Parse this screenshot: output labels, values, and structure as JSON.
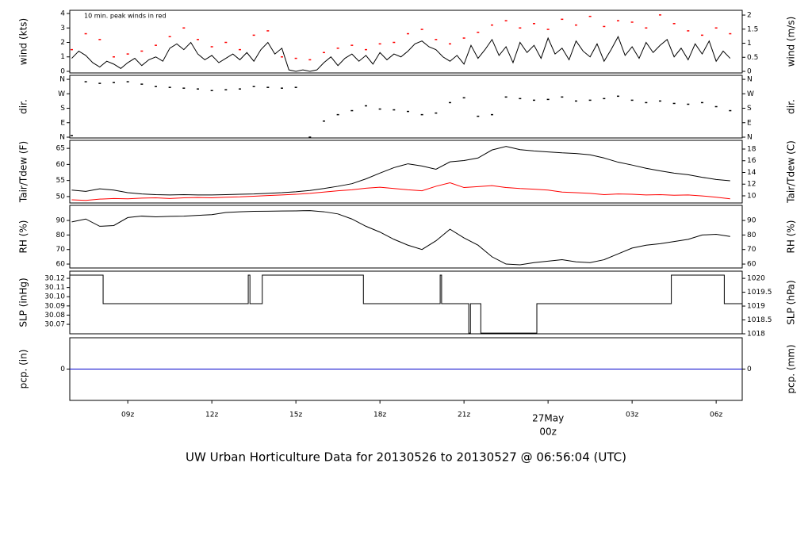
{
  "title": "UW Urban Horticulture Data for 20130526  to  20130527 @ 06:56:04  (UTC)",
  "title_color": "#1a1aff",
  "chart_data": [
    {
      "type": "line",
      "ylabel": "wind (kts)",
      "y2label": "wind (m/s)",
      "annotation": "10 min. peak winds in red",
      "annotation_color": "#ff0000",
      "xlim": [
        6.93,
        30.93
      ],
      "ylim": [
        -0.11,
        4.22
      ],
      "yticks": [
        0,
        1,
        2,
        3,
        4
      ],
      "y2lim": [
        -0.056,
        2.17
      ],
      "y2ticks": [
        0,
        0.5,
        1,
        1.5,
        2
      ],
      "series": [
        {
          "style": "line",
          "color": "#000000",
          "x": [
            7,
            7.25,
            7.5,
            7.75,
            8,
            8.25,
            8.5,
            8.75,
            9,
            9.25,
            9.5,
            9.75,
            10,
            10.25,
            10.5,
            10.75,
            11,
            11.25,
            11.5,
            11.75,
            12,
            12.25,
            12.5,
            12.75,
            13,
            13.25,
            13.5,
            13.75,
            14,
            14.25,
            14.5,
            14.75,
            15,
            15.25,
            15.5,
            15.75,
            16,
            16.25,
            16.5,
            16.75,
            17,
            17.25,
            17.5,
            17.75,
            18,
            18.25,
            18.5,
            18.75,
            19,
            19.25,
            19.5,
            19.75,
            20,
            20.25,
            20.5,
            20.75,
            21,
            21.25,
            21.5,
            21.75,
            22,
            22.25,
            22.5,
            22.75,
            23,
            23.25,
            23.5,
            23.75,
            24,
            24.25,
            24.5,
            24.75,
            25,
            25.25,
            25.5,
            25.75,
            26,
            26.25,
            26.5,
            26.75,
            27,
            27.25,
            27.5,
            27.75,
            28,
            28.25,
            28.5,
            28.75,
            29,
            29.25,
            29.5,
            29.75,
            30,
            30.25,
            30.5
          ],
          "values": [
            0.9,
            1.4,
            1.1,
            0.6,
            0.3,
            0.7,
            0.5,
            0.2,
            0.6,
            0.9,
            0.4,
            0.8,
            1.0,
            0.7,
            1.6,
            1.9,
            1.5,
            2.0,
            1.2,
            0.8,
            1.1,
            0.6,
            0.9,
            1.2,
            0.8,
            1.3,
            0.7,
            1.5,
            2.0,
            1.2,
            1.6,
            0.1,
            0.0,
            0.1,
            0.0,
            0.1,
            0.6,
            1.0,
            0.4,
            0.9,
            1.2,
            0.7,
            1.1,
            0.5,
            1.3,
            0.8,
            1.2,
            1.0,
            1.4,
            1.9,
            2.1,
            1.7,
            1.5,
            1.0,
            0.7,
            1.1,
            0.5,
            1.8,
            0.9,
            1.5,
            2.2,
            1.1,
            1.7,
            0.6,
            2.0,
            1.3,
            1.8,
            0.9,
            2.3,
            1.2,
            1.6,
            0.8,
            2.1,
            1.4,
            1.0,
            1.9,
            0.7,
            1.5,
            2.4,
            1.1,
            1.7,
            0.9,
            2.0,
            1.3,
            1.8,
            2.2,
            1.0,
            1.6,
            0.8,
            1.9,
            1.2,
            2.1,
            0.7,
            1.4,
            0.9
          ]
        },
        {
          "style": "points",
          "color": "#ff0000",
          "x": [
            7,
            7.5,
            8,
            8.5,
            9,
            9.5,
            10,
            10.5,
            11,
            11.5,
            12,
            12.5,
            13,
            13.5,
            14,
            14.5,
            15,
            15.5,
            16,
            16.5,
            17,
            17.5,
            18,
            18.5,
            19,
            19.5,
            20,
            20.5,
            21,
            21.5,
            22,
            22.5,
            23,
            23.5,
            24,
            24.5,
            25,
            25.5,
            26,
            26.5,
            27,
            27.5,
            28,
            28.5,
            29,
            29.5,
            30,
            30.5
          ],
          "values": [
            1.5,
            2.6,
            2.2,
            1.0,
            1.2,
            1.4,
            1.8,
            2.4,
            3.0,
            2.2,
            1.7,
            2.0,
            1.5,
            2.5,
            2.8,
            1.0,
            0.9,
            0.8,
            1.3,
            1.6,
            1.8,
            1.5,
            1.9,
            2.0,
            2.6,
            2.9,
            2.2,
            1.9,
            2.3,
            2.7,
            3.2,
            3.5,
            3.0,
            3.3,
            2.9,
            3.6,
            3.2,
            3.8,
            3.1,
            3.5,
            3.4,
            3.0,
            3.9,
            3.3,
            2.8,
            2.5,
            3.0,
            2.6
          ]
        }
      ]
    },
    {
      "type": "scatter",
      "ylabel": "dir.",
      "y2label": "dir.",
      "xlim": [
        6.93,
        30.93
      ],
      "ylim": [
        -5,
        385
      ],
      "yticks": [
        {
          "value": 0,
          "label": "N"
        },
        {
          "value": 90,
          "label": "E"
        },
        {
          "value": 180,
          "label": "S"
        },
        {
          "value": 270,
          "label": "W"
        },
        {
          "value": 360,
          "label": "N"
        }
      ],
      "y2lim": [
        -5,
        385
      ],
      "y2ticks": [
        {
          "value": 0,
          "label": "N"
        },
        {
          "value": 90,
          "label": "E"
        },
        {
          "value": 180,
          "label": "S"
        },
        {
          "value": 270,
          "label": "W"
        },
        {
          "value": 360,
          "label": "N"
        }
      ],
      "series": [
        {
          "style": "points",
          "color": "#000000",
          "x": [
            7,
            7.5,
            8,
            8.5,
            9,
            9.5,
            10,
            10.5,
            11,
            11.5,
            12,
            12.5,
            13,
            13.5,
            14,
            14.5,
            15,
            15.5,
            16,
            16.5,
            17,
            17.5,
            18,
            18.5,
            19,
            19.5,
            20,
            20.5,
            21,
            21.5,
            22,
            22.5,
            23,
            23.5,
            24,
            24.5,
            25,
            25.5,
            26,
            26.5,
            27,
            27.5,
            28,
            28.5,
            29,
            29.5,
            30,
            30.5
          ],
          "values": [
            10,
            345,
            335,
            340,
            345,
            330,
            315,
            310,
            305,
            300,
            290,
            295,
            300,
            315,
            310,
            305,
            310,
            0,
            100,
            140,
            165,
            195,
            175,
            170,
            160,
            140,
            150,
            215,
            245,
            130,
            140,
            250,
            240,
            230,
            235,
            250,
            225,
            230,
            240,
            255,
            230,
            215,
            225,
            210,
            205,
            215,
            190,
            165
          ]
        }
      ]
    },
    {
      "type": "line",
      "ylabel": "Tair/Tdew (F)",
      "y2label": "Tair/Tdew (C)",
      "xlim": [
        6.93,
        30.93
      ],
      "ylim": [
        48.0,
        67.5
      ],
      "yticks": [
        50,
        55,
        60,
        65
      ],
      "y2lim": [
        8.78,
        19.49
      ],
      "y2ticks": [
        10,
        12,
        14,
        16,
        18
      ],
      "series": [
        {
          "style": "line",
          "color": "#000000",
          "x": [
            7,
            7.5,
            8,
            8.5,
            9,
            9.5,
            10,
            10.5,
            11,
            11.5,
            12,
            12.5,
            13,
            13.5,
            14,
            14.5,
            15,
            15.5,
            16,
            16.5,
            17,
            17.5,
            18,
            18.5,
            19,
            19.5,
            20,
            20.5,
            21,
            21.5,
            22,
            22.5,
            23,
            23.5,
            24,
            24.5,
            25,
            25.5,
            26,
            26.5,
            27,
            27.5,
            28,
            28.5,
            29,
            29.5,
            30,
            30.5
          ],
          "values": [
            52,
            51.6,
            52.4,
            52,
            51.2,
            50.8,
            50.6,
            50.5,
            50.6,
            50.5,
            50.5,
            50.6,
            50.7,
            50.8,
            51,
            51.2,
            51.5,
            51.9,
            52.5,
            53.2,
            54,
            55.5,
            57.3,
            59,
            60.2,
            59.5,
            58.5,
            60.8,
            61.2,
            62,
            64.5,
            65.6,
            64.6,
            64.2,
            63.9,
            63.6,
            63.4,
            63,
            62,
            60.7,
            59.8,
            58.8,
            58,
            57.3,
            56.8,
            56,
            55.3,
            54.9
          ]
        },
        {
          "style": "line",
          "color": "#ff0000",
          "x": [
            7,
            7.5,
            8,
            8.5,
            9,
            9.5,
            10,
            10.5,
            11,
            11.5,
            12,
            12.5,
            13,
            13.5,
            14,
            14.5,
            15,
            15.5,
            16,
            16.5,
            17,
            17.5,
            18,
            18.5,
            19,
            19.5,
            20,
            20.5,
            21,
            21.5,
            22,
            22.5,
            23,
            23.5,
            24,
            24.5,
            25,
            25.5,
            26,
            26.5,
            27,
            27.5,
            28,
            28.5,
            29,
            29.5,
            30,
            30.5
          ],
          "values": [
            49,
            48.8,
            49.2,
            49.4,
            49.3,
            49.5,
            49.6,
            49.4,
            49.6,
            49.7,
            49.6,
            49.8,
            49.9,
            50.1,
            50.3,
            50.5,
            50.7,
            51,
            51.4,
            51.8,
            52.1,
            52.6,
            52.9,
            52.5,
            52.1,
            51.8,
            53.2,
            54.3,
            52.8,
            53.1,
            53.4,
            52.8,
            52.5,
            52.3,
            52,
            51.4,
            51.2,
            51,
            50.6,
            50.8,
            50.7,
            50.5,
            50.6,
            50.4,
            50.5,
            50.2,
            49.8,
            49.3
          ]
        }
      ]
    },
    {
      "type": "line",
      "ylabel": "RH (%)",
      "y2label": "RH (%)",
      "xlim": [
        6.93,
        30.93
      ],
      "ylim": [
        57.3,
        100.4
      ],
      "yticks": [
        60,
        70,
        80,
        90
      ],
      "y2lim": [
        57.3,
        100.4
      ],
      "y2ticks": [
        60,
        70,
        80,
        90
      ],
      "series": [
        {
          "style": "line",
          "color": "#000000",
          "x": [
            7,
            7.5,
            8,
            8.5,
            9,
            9.5,
            10,
            10.5,
            11,
            11.5,
            12,
            12.5,
            13,
            13.5,
            14,
            14.5,
            15,
            15.5,
            16,
            16.5,
            17,
            17.5,
            18,
            18.5,
            19,
            19.5,
            20,
            20.5,
            21,
            21.5,
            22,
            22.5,
            23,
            23.5,
            24,
            24.5,
            25,
            25.5,
            26,
            26.5,
            27,
            27.5,
            28,
            28.5,
            29,
            29.5,
            30,
            30.5
          ],
          "values": [
            89,
            91,
            86,
            86.5,
            92,
            93,
            92.5,
            92.8,
            93,
            93.5,
            94,
            95.5,
            96,
            96.3,
            96.4,
            96.5,
            96.6,
            96.8,
            96,
            94.5,
            91,
            86,
            82,
            77,
            73,
            70,
            76,
            84,
            78,
            73,
            65,
            60,
            59.5,
            61,
            62,
            63,
            61.5,
            61,
            63,
            67,
            71,
            73,
            74,
            75.5,
            77,
            80,
            80.5,
            79
          ]
        }
      ]
    },
    {
      "type": "line",
      "ylabel": "SLP (inHg)",
      "y2label": "SLP (hPa)",
      "xlim": [
        6.93,
        30.93
      ],
      "ylim": [
        30.0597,
        30.1278
      ],
      "yticks": [
        {
          "value": 30.07,
          "label": "30.07"
        },
        {
          "value": 30.08,
          "label": "30.08"
        },
        {
          "value": 30.09,
          "label": "30.09"
        },
        {
          "value": 30.1,
          "label": "30.10"
        },
        {
          "value": 30.11,
          "label": "30.11"
        },
        {
          "value": 30.12,
          "label": "30.12"
        }
      ],
      "y2lim": [
        1018,
        1020.26
      ],
      "y2ticks": [
        1018,
        1018.5,
        1019,
        1019.5,
        1020
      ],
      "series": [
        {
          "style": "step",
          "color": "#000000",
          "x": [
            6.93,
            8.12,
            13.3,
            13.36,
            13.8,
            17.41,
            20.15,
            20.2,
            21.17,
            21.23,
            21.6,
            23.6,
            28.4,
            30.29,
            30.93
          ],
          "values": [
            30.1235,
            30.0925,
            30.1235,
            30.0925,
            30.1235,
            30.0925,
            30.1235,
            30.0925,
            30.0605,
            30.0925,
            30.0605,
            30.0925,
            30.1235,
            30.0925,
            30.0925
          ]
        }
      ]
    },
    {
      "type": "line",
      "ylabel": "pcp. (in)",
      "y2label": "pcp. (mm)",
      "xlim": [
        6.93,
        30.93
      ],
      "ylim": [
        -1,
        1
      ],
      "yticks": [
        0
      ],
      "y2lim": [
        -1,
        1
      ],
      "y2ticks": [
        0
      ],
      "xticks": [
        {
          "value": 9,
          "label": "09z"
        },
        {
          "value": 12,
          "label": "12z"
        },
        {
          "value": 15,
          "label": "15z"
        },
        {
          "value": 18,
          "label": "18z"
        },
        {
          "value": 21,
          "label": "21z"
        },
        {
          "value": 24,
          "label": "00z",
          "date": "27May"
        },
        {
          "value": 27,
          "label": "03z"
        },
        {
          "value": 30,
          "label": "06z"
        }
      ],
      "date_color": "#ff0000",
      "series": [
        {
          "style": "line",
          "color": "#0000cc",
          "x": [
            6.93,
            30.93
          ],
          "values": [
            0,
            0
          ]
        }
      ]
    }
  ]
}
